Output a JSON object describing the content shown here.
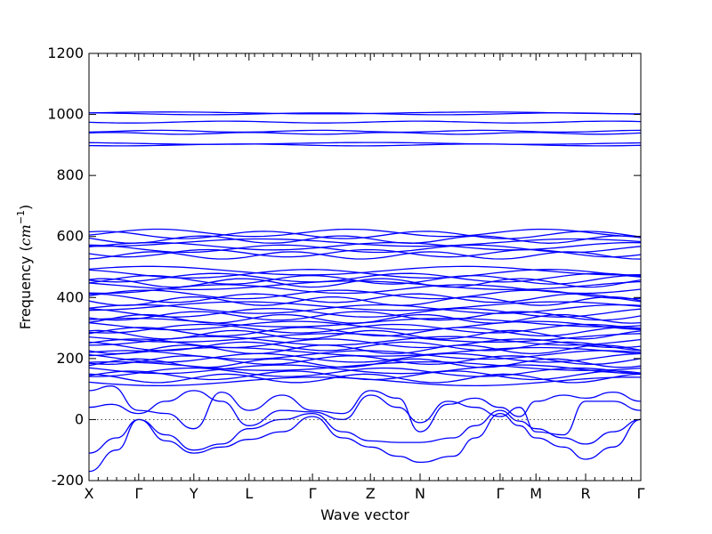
{
  "chart_data": {
    "type": "line",
    "xlabel": "Wave vector",
    "ylabel_main": "Frequency (",
    "ylabel_unit": "cm",
    "ylabel_exp": "−1",
    "ylabel_close": ")",
    "ylim": [
      -200,
      1200
    ],
    "yticks": [
      -200,
      0,
      200,
      400,
      600,
      800,
      1000,
      1200
    ],
    "grid": false,
    "legend": "none",
    "series_color": "#0000ff",
    "kpoints": [
      {
        "label": "X",
        "x": 0.0
      },
      {
        "label": "Γ",
        "x": 0.9
      },
      {
        "label": "Y",
        "x": 1.9
      },
      {
        "label": "L",
        "x": 2.9
      },
      {
        "label": "Γ",
        "x": 4.05
      },
      {
        "label": "Z",
        "x": 5.1
      },
      {
        "label": "N",
        "x": 6.0
      },
      {
        "label": "Γ",
        "x": 7.45
      },
      {
        "label": "M",
        "x": 8.1
      },
      {
        "label": "R",
        "x": 9.0
      },
      {
        "label": "Γ",
        "x": 10.0
      }
    ],
    "xrange": [
      0,
      10.0
    ],
    "flat_bands": [
      1005,
      1002,
      975,
      945,
      938,
      905,
      900,
      612,
      605,
      590,
      580,
      568,
      560,
      545,
      538,
      488,
      478,
      465,
      458,
      448,
      440,
      428,
      410,
      398,
      388,
      372,
      362,
      350,
      340,
      330,
      318,
      308,
      298,
      288,
      278,
      268,
      258,
      250,
      240,
      230,
      222,
      212,
      202,
      195,
      185,
      175,
      165,
      155,
      145,
      135,
      125
    ],
    "acoustic_bands": [
      {
        "name": "",
        "x": [
          0,
          0.5,
          0.9,
          1.4,
          1.9,
          2.4,
          2.9,
          3.5,
          4.05,
          4.6,
          5.1,
          5.6,
          6.0,
          6.6,
          7.0,
          7.45,
          7.8,
          8.1,
          8.6,
          9.0,
          9.5,
          10.0
        ],
        "y": [
          -170,
          -100,
          0,
          -70,
          -110,
          -90,
          -65,
          -40,
          10,
          -60,
          -90,
          -120,
          -140,
          -120,
          -60,
          20,
          -20,
          -60,
          -90,
          -130,
          -90,
          0
        ]
      },
      {
        "name": "",
        "x": [
          0,
          0.5,
          0.9,
          1.4,
          1.9,
          2.4,
          2.9,
          3.5,
          4.05,
          4.6,
          5.1,
          5.6,
          6.0,
          6.6,
          7.0,
          7.45,
          7.8,
          8.1,
          8.6,
          9.0,
          9.5,
          10.0
        ],
        "y": [
          -110,
          -60,
          0,
          -50,
          -100,
          -80,
          -30,
          0,
          20,
          -40,
          -70,
          -75,
          -75,
          -60,
          -20,
          30,
          -5,
          -30,
          -60,
          -80,
          -40,
          0
        ]
      },
      {
        "name": "",
        "x": [
          0,
          0.4,
          0.9,
          1.4,
          1.9,
          2.4,
          2.9,
          3.5,
          4.05,
          4.6,
          5.1,
          5.6,
          6.0,
          6.5,
          7.0,
          7.45,
          7.8,
          8.1,
          8.6,
          9.0,
          9.5,
          10.0
        ],
        "y": [
          40,
          50,
          20,
          60,
          95,
          60,
          -20,
          30,
          25,
          0,
          80,
          40,
          -10,
          60,
          40,
          10,
          40,
          -40,
          -50,
          60,
          60,
          30
        ]
      },
      {
        "name": "",
        "x": [
          0,
          0.4,
          0.9,
          1.4,
          1.9,
          2.4,
          2.9,
          3.5,
          4.05,
          4.6,
          5.1,
          5.6,
          6.0,
          6.5,
          7.0,
          7.45,
          7.8,
          8.1,
          8.6,
          9.0,
          9.5,
          10.0
        ],
        "y": [
          95,
          110,
          30,
          20,
          -30,
          90,
          30,
          80,
          30,
          20,
          95,
          70,
          -40,
          50,
          70,
          40,
          10,
          60,
          80,
          70,
          90,
          60
        ]
      }
    ]
  }
}
